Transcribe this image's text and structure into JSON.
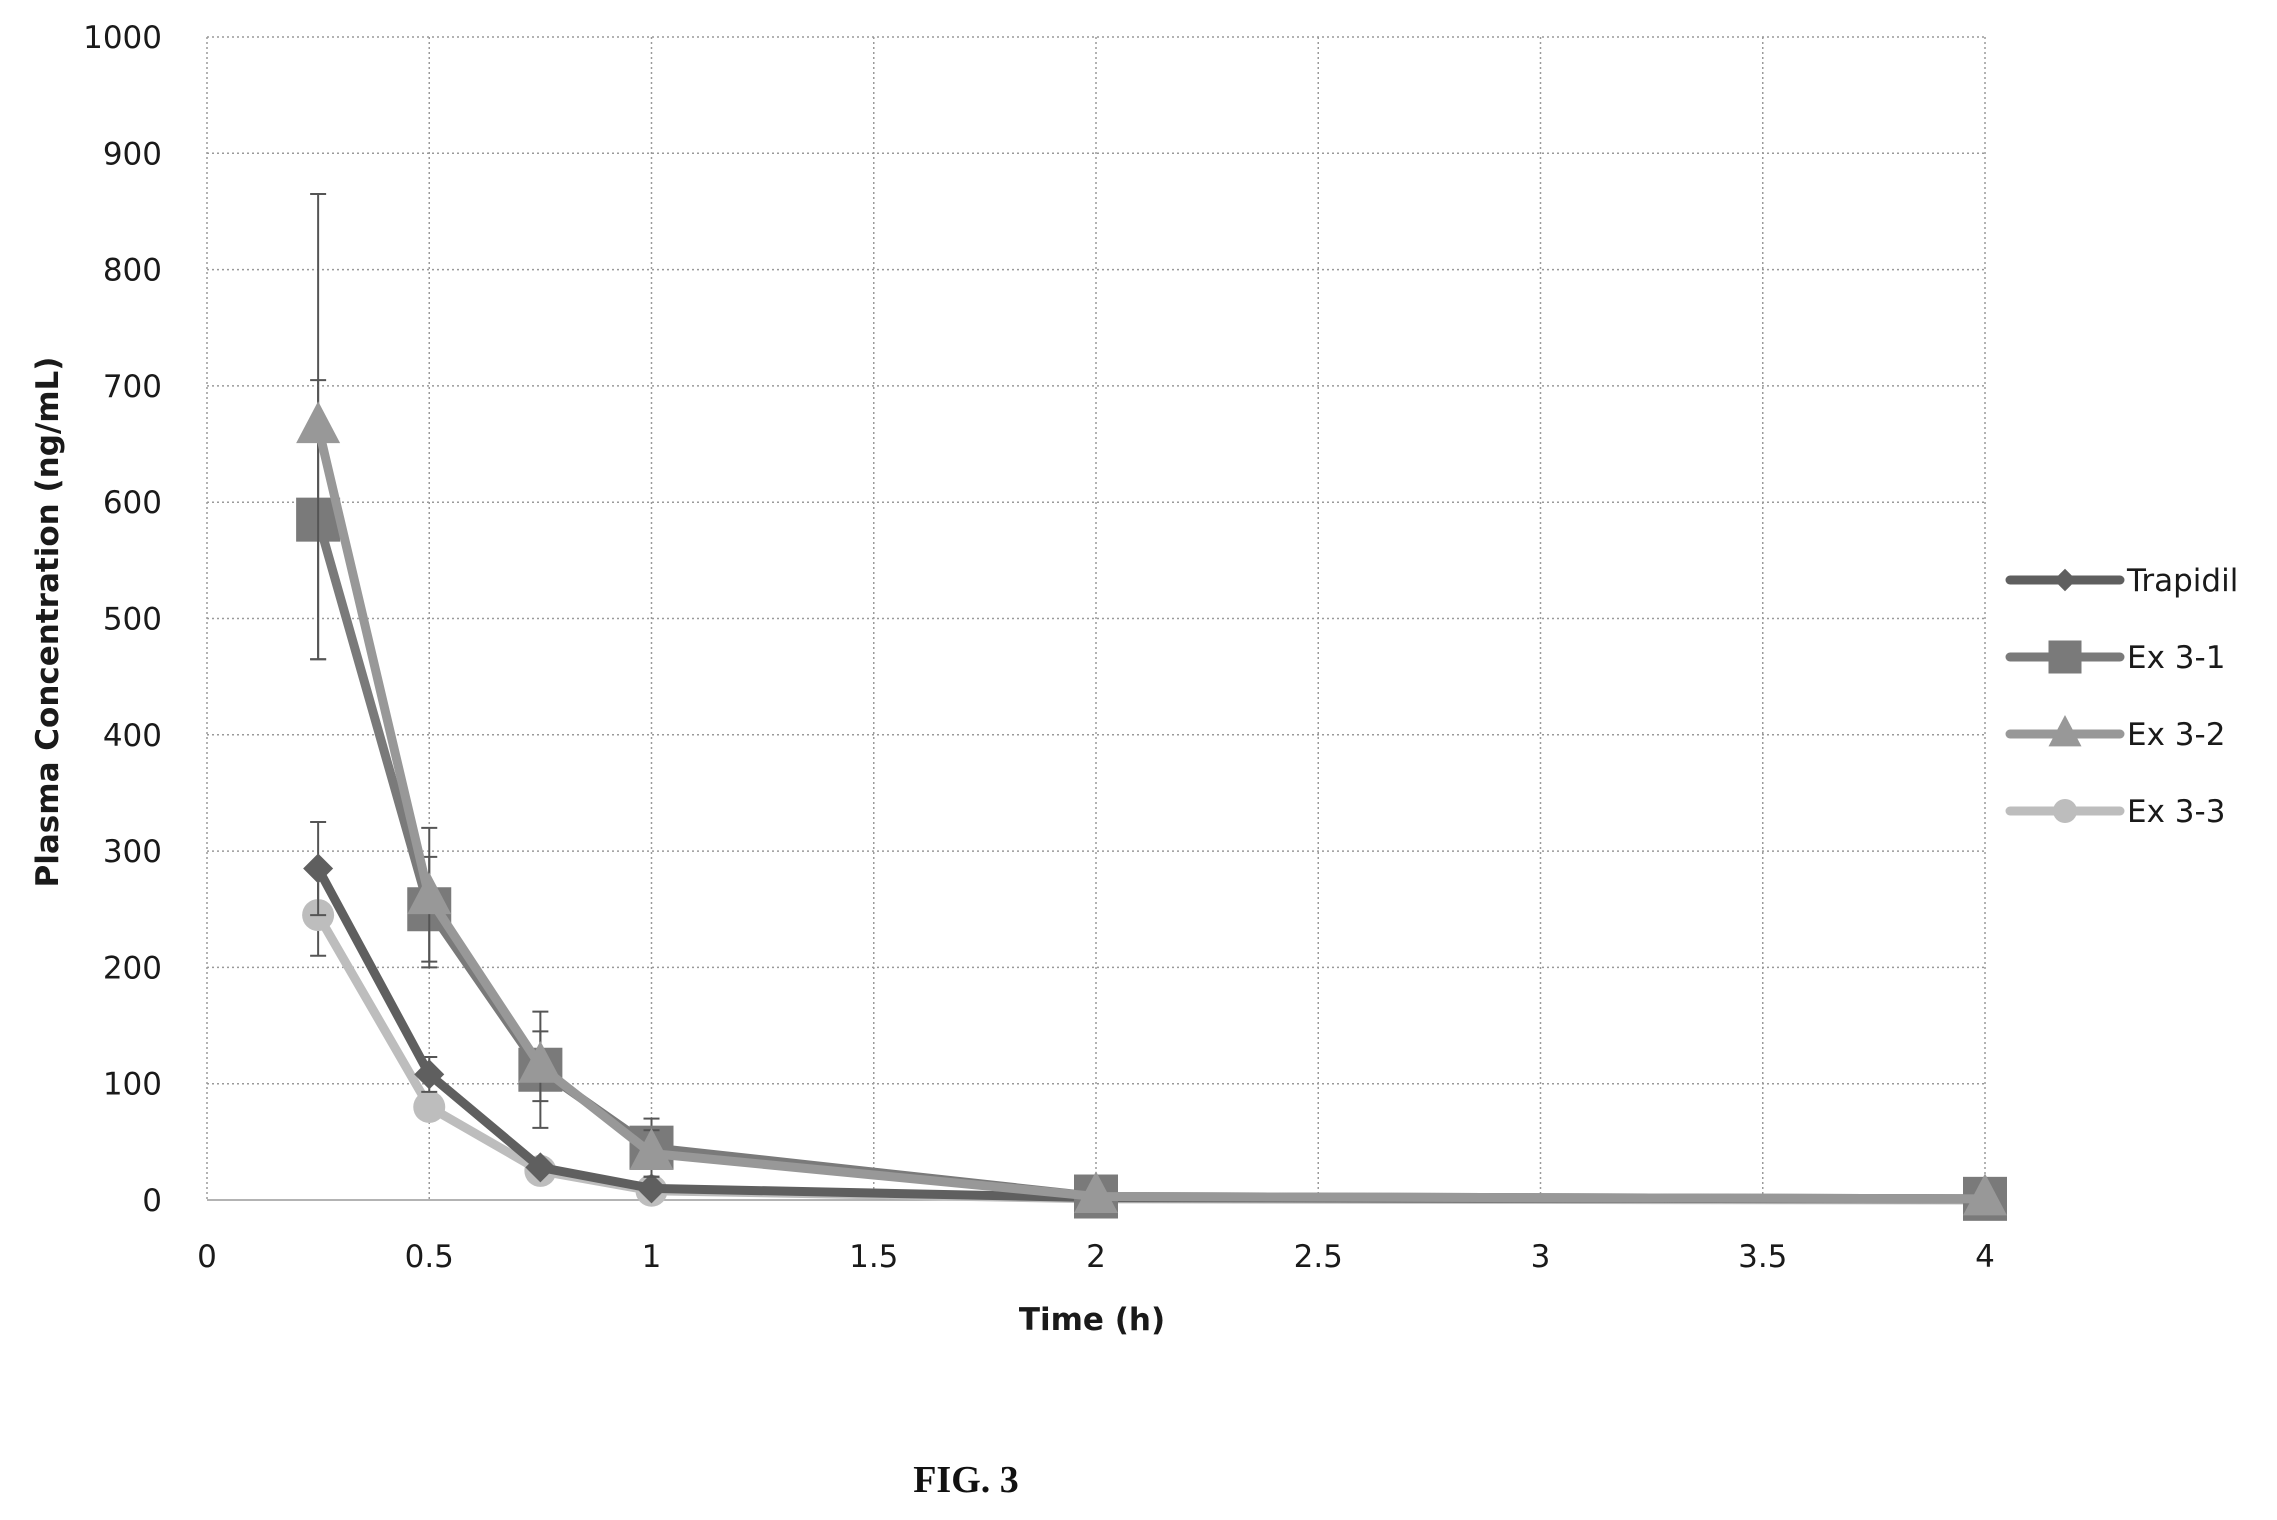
{
  "figure_caption": "FIG. 3",
  "chart_data": {
    "type": "line",
    "xlabel": "Time (h)",
    "ylabel": "Plasma Concentration (ng/mL)",
    "xlim": [
      0,
      4
    ],
    "ylim": [
      0,
      1000
    ],
    "x_ticks": [
      0,
      0.5,
      1,
      1.5,
      2,
      2.5,
      3,
      3.5,
      4
    ],
    "y_ticks": [
      0,
      100,
      200,
      300,
      400,
      500,
      600,
      700,
      800,
      900,
      1000
    ],
    "x_tick_labels": [
      "0",
      "0.5",
      "1",
      "1.5",
      "2",
      "2.5",
      "3",
      "3.5",
      "4"
    ],
    "y_tick_labels": [
      "0",
      "100",
      "200",
      "300",
      "400",
      "500",
      "600",
      "700",
      "800",
      "900",
      "1000"
    ],
    "grid": true,
    "grid_style": "dotted",
    "legend_position": "right",
    "series": [
      {
        "name": "Trapidil",
        "marker": "diamond",
        "color": "#5f5f5f",
        "x": [
          0.25,
          0.5,
          0.75,
          1,
          2,
          4
        ],
        "y": [
          285,
          108,
          28,
          10,
          2,
          1
        ],
        "err": [
          40,
          15,
          0,
          0,
          0,
          0
        ]
      },
      {
        "name": "Ex 3-1",
        "marker": "square",
        "color": "#7a7a7a",
        "x": [
          0.25,
          0.5,
          0.75,
          1,
          2,
          4
        ],
        "y": [
          585,
          250,
          112,
          45,
          3,
          1
        ],
        "err": [
          120,
          45,
          50,
          25,
          0,
          0
        ]
      },
      {
        "name": "Ex 3-2",
        "marker": "triangle",
        "color": "#989898",
        "x": [
          0.25,
          0.5,
          0.75,
          1,
          2,
          4
        ],
        "y": [
          665,
          260,
          115,
          40,
          3,
          1
        ],
        "err": [
          200,
          60,
          30,
          20,
          0,
          0
        ]
      },
      {
        "name": "Ex 3-3",
        "marker": "circle",
        "color": "#bdbdbd",
        "x": [
          0.25,
          0.5,
          0.75,
          1,
          2,
          4
        ],
        "y": [
          245,
          80,
          25,
          8,
          1,
          0
        ],
        "err": [
          35,
          0,
          0,
          0,
          0,
          0
        ]
      }
    ]
  }
}
